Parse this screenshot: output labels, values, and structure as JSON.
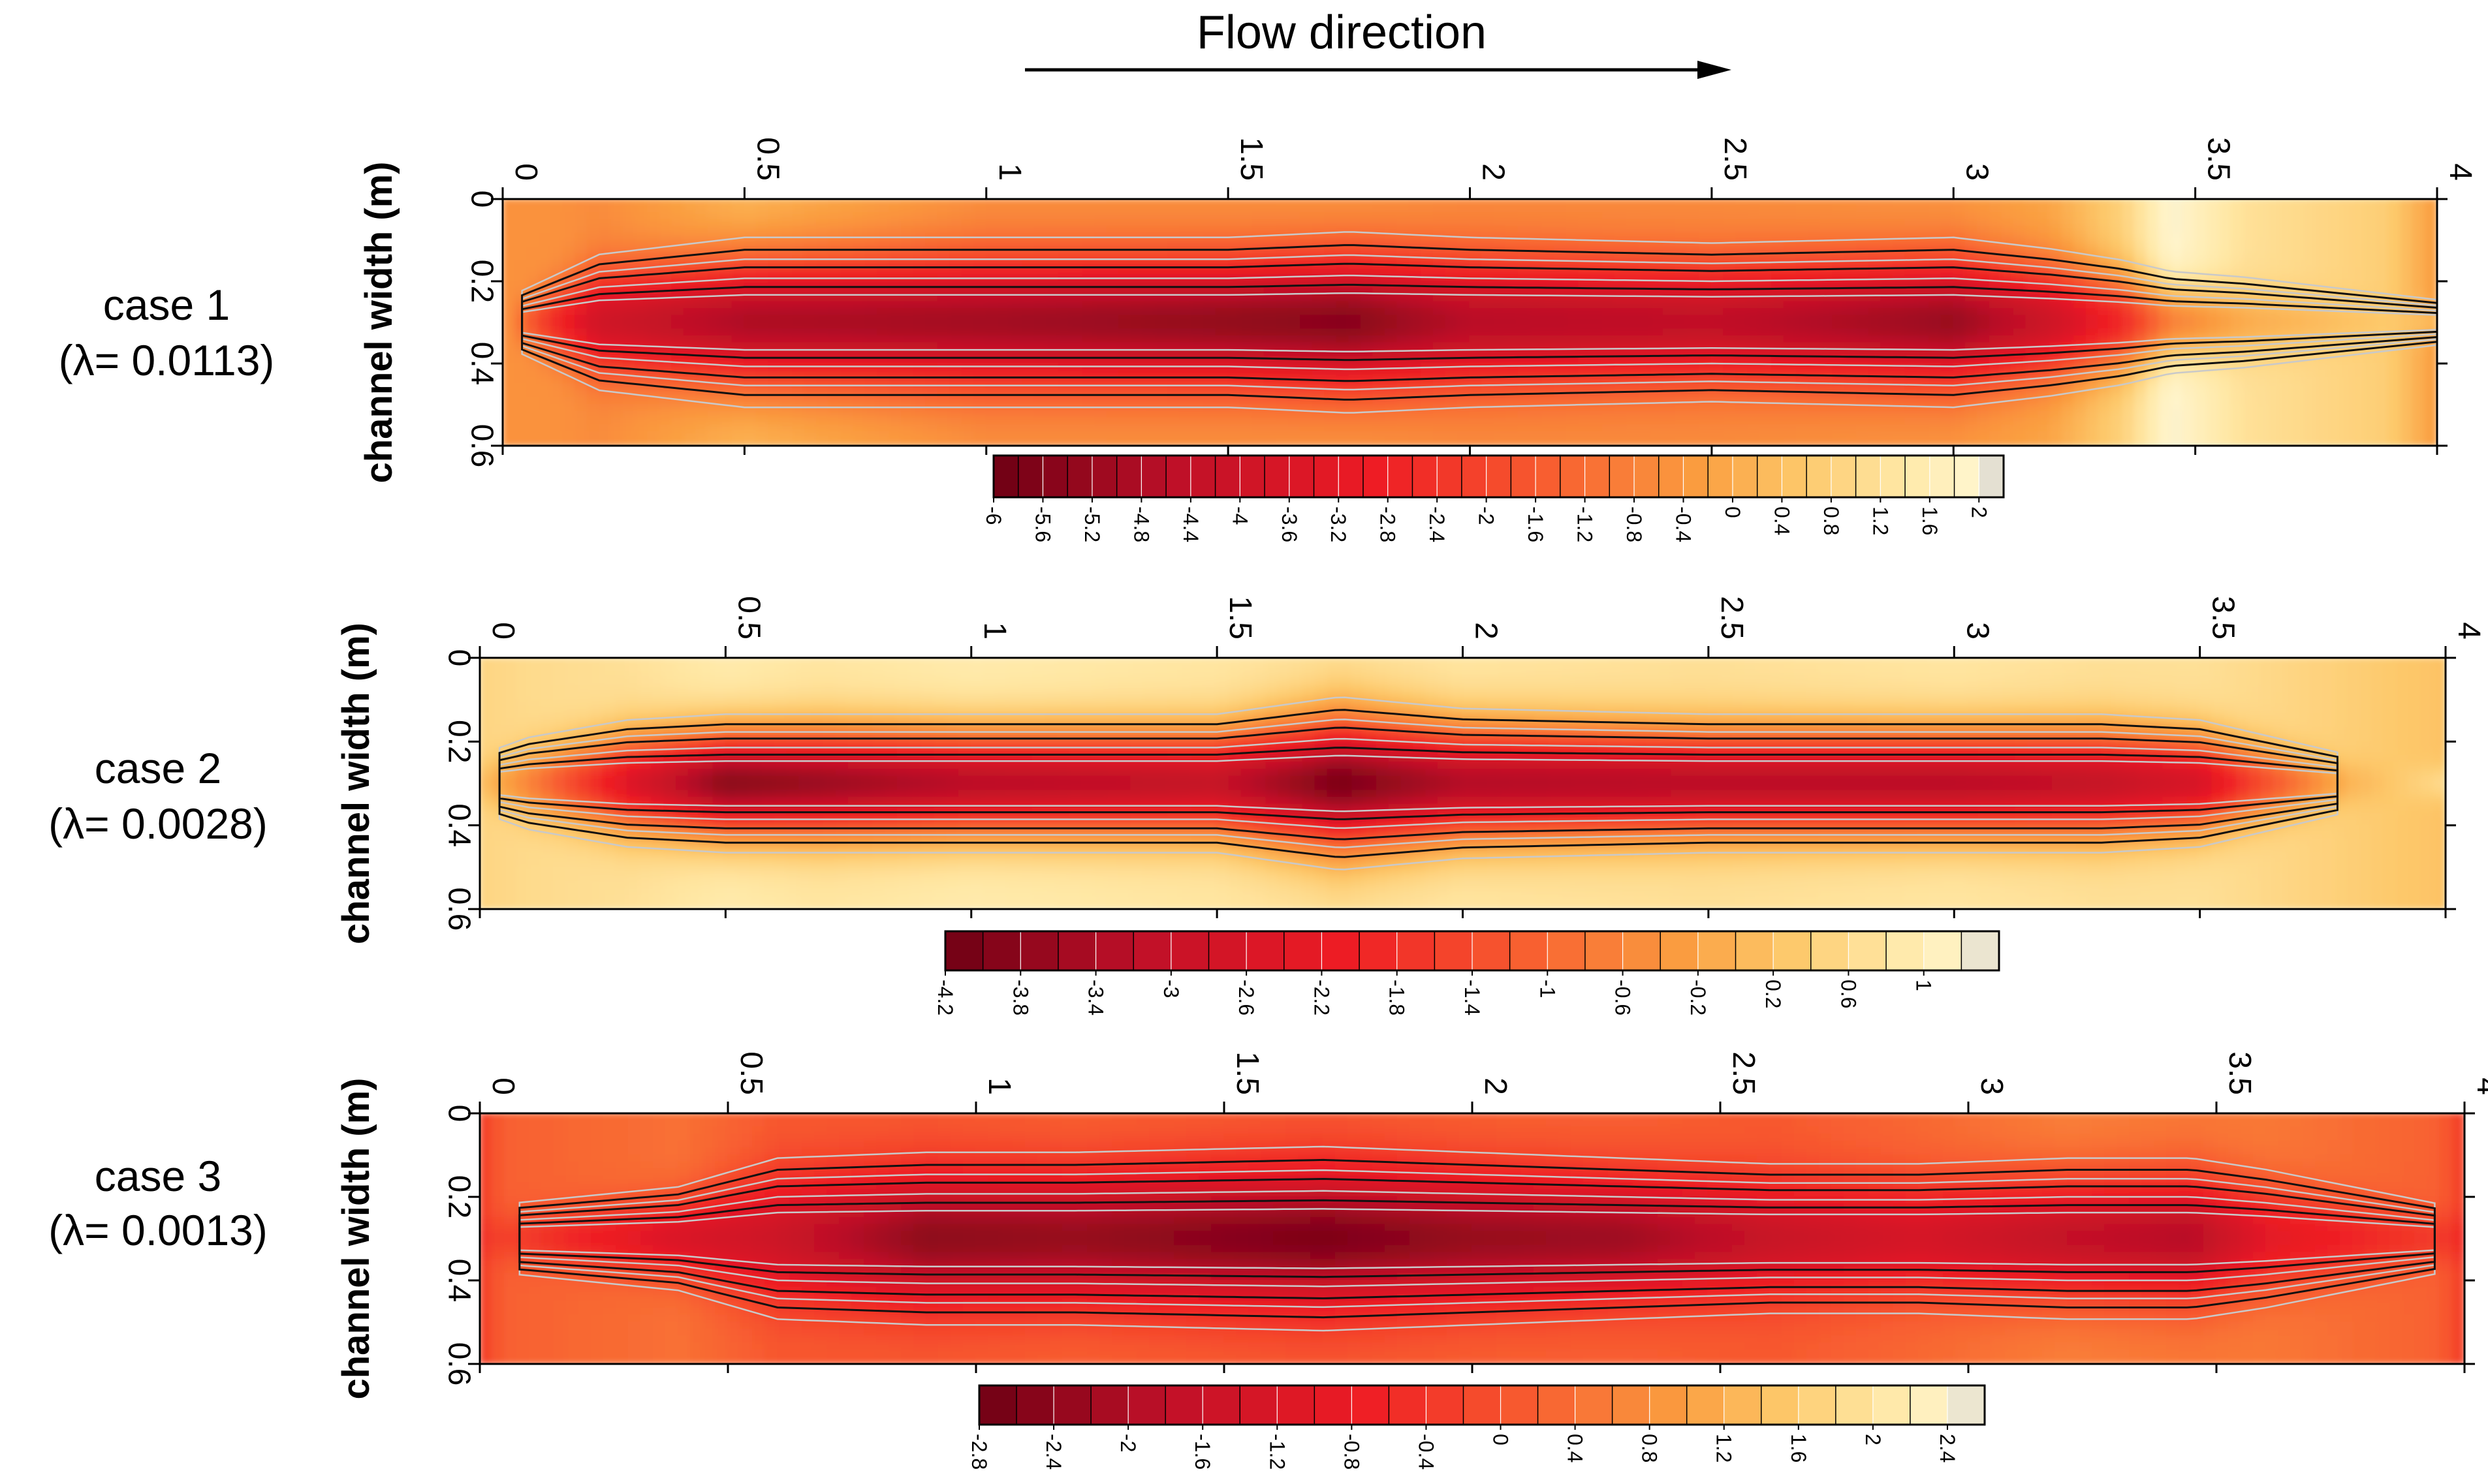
{
  "header": {
    "flow_label": "Flow direction"
  },
  "chart_data": [
    {
      "type": "heatmap",
      "case_label": "case 1",
      "lambda_label": "(λ= 0.0113)",
      "ylabel": "channel width (m)",
      "xlim": [
        0,
        4
      ],
      "ylim": [
        0,
        0.6
      ],
      "x_ticks": [
        "0",
        "0.5",
        "1",
        "1.5",
        "2",
        "2.5",
        "3",
        "3.5",
        "4"
      ],
      "y_ticks": [
        "0",
        "0.2",
        "0.4",
        "0.6"
      ],
      "colorbar": {
        "min": -6.0,
        "max": 2.2,
        "step": 0.2,
        "labels": [
          "-6",
          "-5.6",
          "-5.2",
          "-4.8",
          "-4.4",
          "-4",
          "-3.6",
          "-3.2",
          "-2.8",
          "-2.4",
          "-2",
          "-1.6",
          "-1.2",
          "-0.8",
          "-0.4",
          "0",
          "0.4",
          "0.8",
          "1.2",
          "1.6",
          "2"
        ]
      },
      "field": {
        "centerline": 0.3,
        "values_x": [
          0,
          0.1,
          0.2,
          0.5,
          1.0,
          1.5,
          1.75,
          2.0,
          2.5,
          3.0,
          3.2,
          3.35,
          3.45,
          3.6,
          3.9,
          4.0
        ],
        "center_values": [
          -0.3,
          -2.4,
          -3.9,
          -4.8,
          -5.0,
          -5.3,
          -5.5,
          -4.6,
          -4.4,
          -5.2,
          -4.0,
          -2.6,
          -0.8,
          0.0,
          0.6,
          0.2
        ],
        "wall_values": [
          -0.5,
          -0.5,
          -0.6,
          0.2,
          -0.5,
          -0.5,
          -0.4,
          -0.6,
          -0.6,
          -0.4,
          -0.1,
          0.8,
          2.0,
          1.2,
          0.7,
          -0.3
        ],
        "width_values": [
          0.04,
          0.08,
          0.12,
          0.15,
          0.15,
          0.15,
          0.16,
          0.15,
          0.14,
          0.15,
          0.13,
          0.11,
          0.09,
          0.08,
          0.05,
          0.04
        ]
      }
    },
    {
      "type": "heatmap",
      "case_label": "case 2",
      "lambda_label": "(λ= 0.0028)",
      "ylabel": "channel width (m)",
      "xlim": [
        0,
        4
      ],
      "ylim": [
        0,
        0.6
      ],
      "x_ticks": [
        "0",
        "0.5",
        "1",
        "1.5",
        "2",
        "2.5",
        "3",
        "3.5",
        "4"
      ],
      "y_ticks": [
        "0",
        "0.2",
        "0.4",
        "0.6"
      ],
      "colorbar": {
        "min": -4.2,
        "max": 1.4,
        "step": 0.2,
        "labels": [
          "-4.2",
          "-3.8",
          "-3.4",
          "-3",
          "-2.6",
          "-2.2",
          "-1.8",
          "-1.4",
          "-1",
          "-0.6",
          "-0.2",
          "0.2",
          "0.6",
          "1"
        ]
      },
      "field": {
        "centerline": 0.3,
        "values_x": [
          0,
          0.1,
          0.3,
          0.5,
          0.7,
          1.0,
          1.5,
          1.75,
          2.0,
          2.5,
          3.0,
          3.3,
          3.5,
          3.6,
          3.8,
          4.0
        ],
        "center_values": [
          0.2,
          -0.6,
          -2.4,
          -3.8,
          -3.6,
          -3.2,
          -3.0,
          -4.0,
          -3.3,
          -3.2,
          -3.2,
          -3.0,
          -2.6,
          -1.6,
          0.0,
          0.6
        ],
        "wall_values": [
          0.5,
          0.6,
          0.7,
          0.9,
          0.8,
          0.9,
          0.8,
          0.7,
          0.8,
          0.7,
          0.8,
          0.7,
          0.7,
          0.6,
          0.4,
          0.2
        ],
        "width_values": [
          0.05,
          0.08,
          0.11,
          0.12,
          0.12,
          0.12,
          0.12,
          0.15,
          0.13,
          0.12,
          0.12,
          0.12,
          0.11,
          0.09,
          0.05,
          0.04
        ]
      }
    },
    {
      "type": "heatmap",
      "case_label": "case 3",
      "lambda_label": "(λ= 0.0013)",
      "ylabel": "channel width (m)",
      "xlim": [
        0,
        4
      ],
      "ylim": [
        0,
        0.6
      ],
      "x_ticks": [
        "0",
        "0.5",
        "1",
        "1.5",
        "2",
        "2.5",
        "3",
        "3.5",
        "4"
      ],
      "y_ticks": [
        "0",
        "0.2",
        "0.4",
        "0.6"
      ],
      "colorbar": {
        "min": -2.8,
        "max": 2.6,
        "step": 0.2,
        "labels": [
          "-2.8",
          "-2.4",
          "-2",
          "-1.6",
          "-1.2",
          "-0.8",
          "-0.4",
          "0",
          "0.4",
          "0.8",
          "1.2",
          "1.6",
          "2",
          "2.4"
        ]
      },
      "field": {
        "centerline": 0.3,
        "values_x": [
          0,
          0.05,
          0.4,
          0.6,
          0.9,
          1.2,
          1.7,
          2.0,
          2.3,
          2.6,
          2.9,
          3.2,
          3.45,
          3.6,
          3.95,
          4.0
        ],
        "center_values": [
          -0.4,
          -0.2,
          -1.2,
          -1.5,
          -2.4,
          -2.3,
          -2.6,
          -2.3,
          -2.2,
          -1.6,
          -1.3,
          -1.7,
          -1.9,
          -1.0,
          -0.3,
          -0.6
        ],
        "wall_values": [
          -0.3,
          0.2,
          0.4,
          0.1,
          0.1,
          0.2,
          0.1,
          0.2,
          0.2,
          0.1,
          0.3,
          0.6,
          0.5,
          0.5,
          0.2,
          -0.3
        ],
        "width_values": [
          0.05,
          0.06,
          0.09,
          0.14,
          0.15,
          0.15,
          0.16,
          0.15,
          0.14,
          0.13,
          0.13,
          0.14,
          0.14,
          0.12,
          0.06,
          0.05
        ]
      }
    }
  ]
}
